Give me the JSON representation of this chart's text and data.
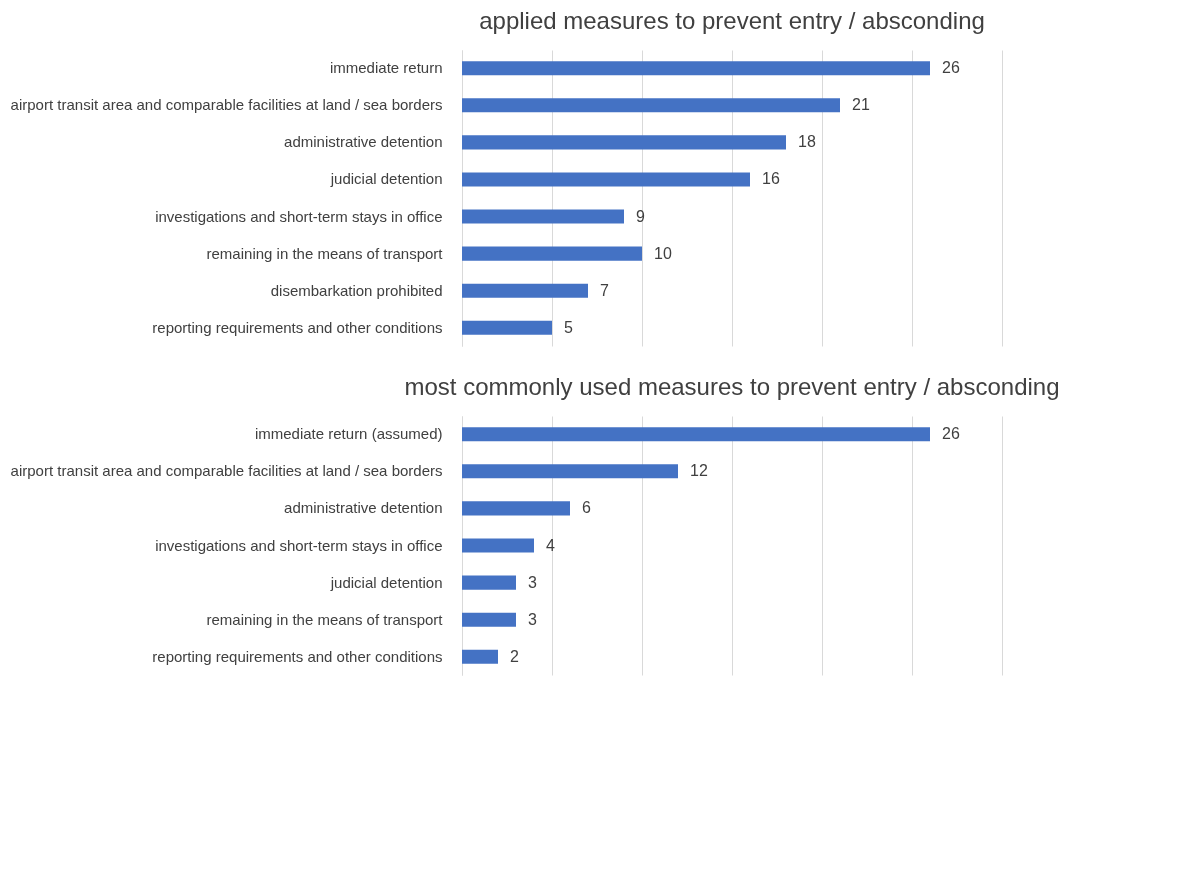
{
  "chart_data": [
    {
      "type": "bar",
      "orientation": "horizontal",
      "title": "applied measures to prevent entry / absconding",
      "categories": [
        "immediate return",
        "airport transit area and comparable facilities at land / sea borders",
        "administrative detention",
        "judicial detention",
        "investigations and short-term stays in office",
        "remaining in the means of transport",
        "disembarkation prohibited",
        "reporting requirements and other conditions"
      ],
      "values": [
        26,
        21,
        18,
        16,
        9,
        10,
        7,
        5
      ],
      "color": "#4472c4",
      "xlim": [
        0,
        30
      ],
      "xticks": [
        {
          "value": 0,
          "label": null
        },
        {
          "value": 5,
          "label": null
        },
        {
          "value": 10,
          "label": null
        },
        {
          "value": 15,
          "label": null
        },
        {
          "value": 20,
          "label": null
        },
        {
          "value": 25,
          "label": null
        },
        {
          "value": 30,
          "label": null
        }
      ],
      "grid": "x",
      "tick_labels": "y",
      "data_labels": true
    },
    {
      "type": "bar",
      "orientation": "horizontal",
      "title": "most commonly used measures to prevent entry / absconding",
      "categories": [
        "immediate return (assumed)",
        "airport transit area and comparable facilities at land / sea borders",
        "administrative detention",
        "investigations and short-term stays in office",
        "judicial detention",
        "remaining in the means of transport",
        "reporting requirements and other conditions"
      ],
      "values": [
        26,
        12,
        6,
        4,
        3,
        3,
        2
      ],
      "color": "#4472c4",
      "xlim": [
        0,
        30
      ],
      "xticks": [
        {
          "value": 0,
          "label": null
        },
        {
          "value": 5,
          "label": null
        },
        {
          "value": 10,
          "label": null
        },
        {
          "value": 15,
          "label": null
        },
        {
          "value": 20,
          "label": null
        },
        {
          "value": 25,
          "label": null
        },
        {
          "value": 30,
          "label": null
        }
      ],
      "grid": "x",
      "tick_labels": "y",
      "data_labels": true
    }
  ]
}
